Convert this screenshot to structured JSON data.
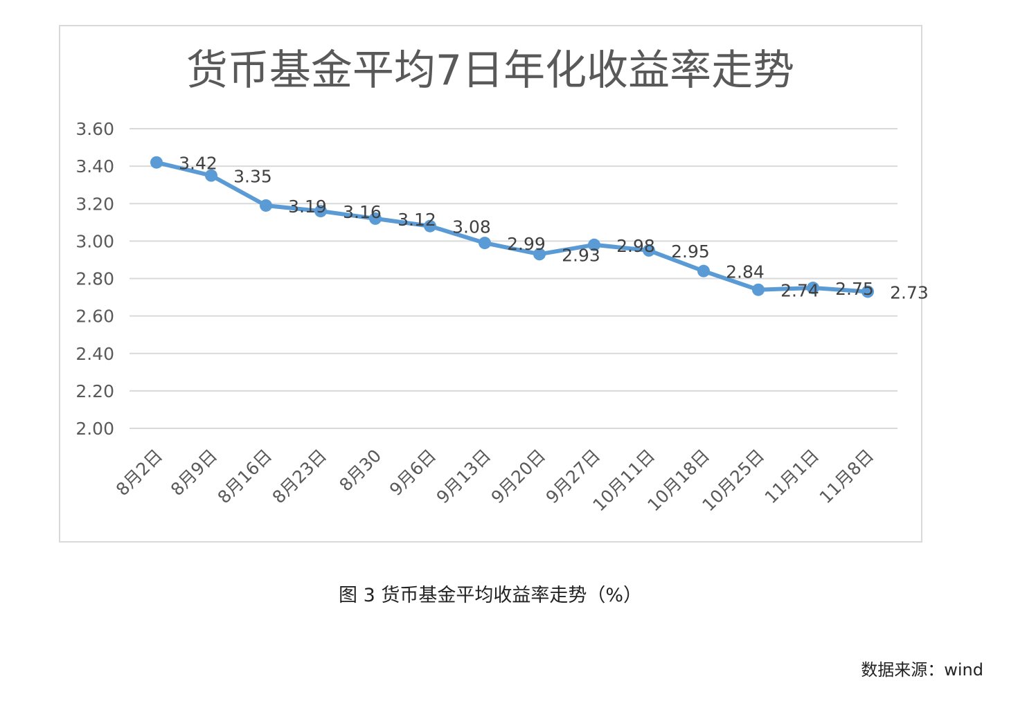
{
  "chart_data": {
    "type": "line",
    "title": "货币基金平均7日年化收益率走势",
    "categories": [
      "8月2日",
      "8月9日",
      "8月16日",
      "8月23日",
      "8月30",
      "9月6日",
      "9月13日",
      "9月20日",
      "9月27日",
      "10月11日",
      "10月18日",
      "10月25日",
      "11月1日",
      "11月8日"
    ],
    "values": [
      3.42,
      3.35,
      3.19,
      3.16,
      3.12,
      3.08,
      2.99,
      2.93,
      2.98,
      2.95,
      2.84,
      2.74,
      2.75,
      2.73
    ],
    "data_labels": [
      "3.42",
      "3.35",
      "3.19",
      "3.16",
      "3.12",
      "3.08",
      "2.99",
      "2.93",
      "2.98",
      "2.95",
      "2.84",
      "2.74",
      "2.75",
      "2.73"
    ],
    "y_ticks": [
      "2.00",
      "2.20",
      "2.40",
      "2.60",
      "2.80",
      "3.00",
      "3.20",
      "3.40",
      "3.60"
    ],
    "ylim": [
      2.0,
      3.6
    ],
    "grid": true,
    "legend": "none",
    "line_color": "#5b9bd5"
  },
  "caption": "图 3 货币基金平均收益率走势（%）",
  "source": "数据来源：wind"
}
